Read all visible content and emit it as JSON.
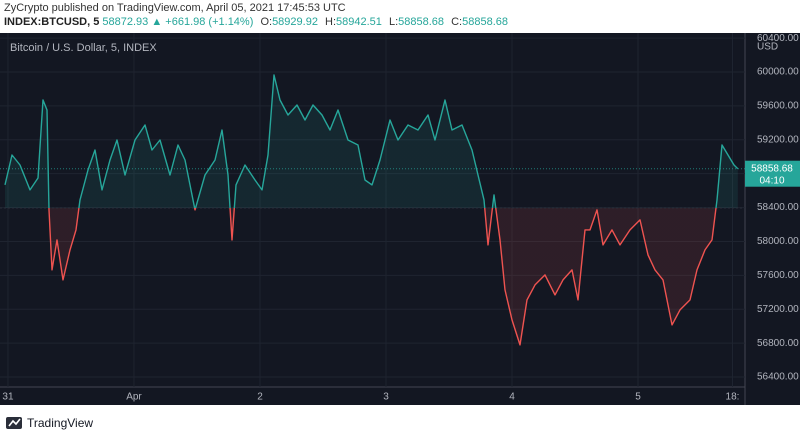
{
  "header": {
    "publisher": "ZyCrypto published on TradingView.com, April 05, 2021 17:45:53 UTC",
    "symbol": "INDEX:BTCUSD, 5",
    "last": "58872.93",
    "change": "▲ +661.98 (+1.14%)",
    "open_label": "O:",
    "open": "58929.92",
    "high_label": "H:",
    "high": "58942.51",
    "low_label": "L:",
    "low": "58858.68",
    "close_label": "C:",
    "close": "58858.68"
  },
  "footer": {
    "brand": "TradingView"
  },
  "chart_data": {
    "type": "baseline",
    "title": "Bitcoin / U.S. Dollar, 5, INDEX",
    "currency": "USD",
    "x": [
      -0.57,
      0.76,
      2.29,
      4.19,
      5.71,
      6.67,
      7.43,
      7.81,
      8.38,
      9.33,
      10.48,
      11.81,
      12.95,
      13.71,
      15.24,
      16.57,
      17.9,
      19.43,
      20.76,
      22.29,
      24.19,
      26.1,
      27.43,
      28.95,
      30.86,
      32.38,
      33.71,
      35.62,
      37.52,
      39.43,
      40.76,
      41.9,
      42.67,
      43.43,
      45.14,
      47.05,
      48.38,
      49.52,
      50.67,
      51.81,
      53.33,
      55.05,
      56.57,
      58.1,
      59.81,
      61.33,
      62.86,
      64.76,
      66.67,
      68.0,
      69.33,
      70.86,
      72.76,
      74.29,
      76.19,
      78.1,
      80.0,
      81.33,
      83.24,
      84.57,
      86.48,
      88.38,
      89.52,
      90.67,
      91.43,
      92.57,
      93.71,
      94.67,
      96.0,
      97.52,
      98.86,
      100.38,
      102.29,
      104.19,
      105.71,
      107.43,
      108.57,
      109.9,
      110.86,
      112.19,
      113.33,
      115.05,
      116.57,
      118.48,
      120.38,
      121.9,
      123.24,
      124.76,
      126.48,
      128.0,
      129.9,
      131.24,
      132.76,
      134.1,
      135.05,
      136.0,
      137.14,
      138.29,
      139.0
    ],
    "values": [
      58667,
      59021,
      58903,
      58608,
      58749,
      59670,
      59552,
      58372,
      57664,
      58018,
      57546,
      57900,
      58136,
      58490,
      58844,
      59080,
      58608,
      58962,
      59198,
      58785,
      59198,
      59375,
      59080,
      59198,
      58785,
      59139,
      58962,
      58372,
      58785,
      58962,
      59316,
      58785,
      58018,
      58667,
      58903,
      58726,
      58608,
      59021,
      59965,
      59670,
      59493,
      59611,
      59434,
      59611,
      59493,
      59316,
      59552,
      59198,
      59139,
      58726,
      58667,
      58962,
      59434,
      59198,
      59375,
      59316,
      59493,
      59198,
      59670,
      59316,
      59375,
      59080,
      58785,
      58490,
      57959,
      58549,
      58018,
      57428,
      57074,
      56779,
      57310,
      57487,
      57605,
      57369,
      57546,
      57664,
      57310,
      58136,
      58136,
      58372,
      57959,
      58136,
      57959,
      58136,
      58254,
      57841,
      57664,
      57546,
      57015,
      57192,
      57310,
      57664,
      57900,
      58018,
      58490,
      59139,
      59021,
      58903,
      58858.68
    ],
    "baseline": 58395,
    "up_color": "#26a69a",
    "down_color": "#ef5350",
    "last_price": {
      "value": 58858.68,
      "label": "58858.68"
    },
    "countdown": "04:10",
    "xlim": [
      -1.52,
      140.38
    ],
    "xticks": [
      {
        "value": 0,
        "label": "31"
      },
      {
        "value": 24,
        "label": "Apr"
      },
      {
        "value": 48,
        "label": "2"
      },
      {
        "value": 72,
        "label": "3"
      },
      {
        "value": 96,
        "label": "4"
      },
      {
        "value": 120,
        "label": "5"
      },
      {
        "value": 138,
        "label": "18:"
      }
    ],
    "ylim": [
      56282,
      60437
    ],
    "yticks": [
      {
        "value": 56400,
        "label": "56400.00"
      },
      {
        "value": 56800,
        "label": "56800.00"
      },
      {
        "value": 57200,
        "label": "57200.00"
      },
      {
        "value": 57600,
        "label": "57600.00"
      },
      {
        "value": 58000,
        "label": "58000.00"
      },
      {
        "value": 58400,
        "label": "58400.00"
      },
      {
        "value": 58800,
        "label": "58800.00"
      },
      {
        "value": 59200,
        "label": "59200.00"
      },
      {
        "value": 59600,
        "label": "59600.00"
      },
      {
        "value": 60000,
        "label": "60000.00"
      },
      {
        "value": 60400,
        "label": "60400.00"
      }
    ],
    "grid": true
  }
}
